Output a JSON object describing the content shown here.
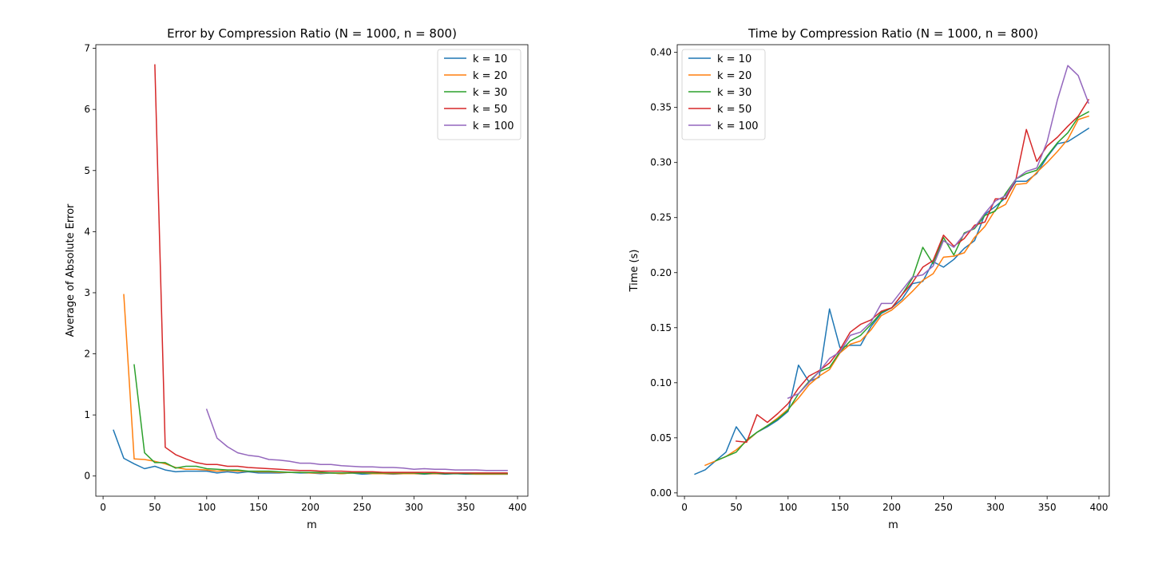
{
  "chart_data": [
    {
      "type": "line",
      "title": "Error by Compression Ratio (N = 1000, n = 800)",
      "xlabel": "m",
      "ylabel": "Average of Absolute Error",
      "xlim": [
        -7,
        410
      ],
      "ylim": [
        -0.33,
        7.06
      ],
      "xticks": [
        0,
        50,
        100,
        150,
        200,
        250,
        300,
        350,
        400
      ],
      "yticks": [
        0,
        1,
        2,
        3,
        4,
        5,
        6,
        7
      ],
      "legend_position": "upper right",
      "series": [
        {
          "name": "k = 10",
          "color": "#1f77b4",
          "x": [
            10,
            20,
            30,
            40,
            50,
            60,
            70,
            80,
            90,
            100,
            110,
            120,
            130,
            140,
            150,
            160,
            170,
            180,
            190,
            200,
            210,
            220,
            230,
            240,
            250,
            260,
            270,
            280,
            290,
            300,
            310,
            320,
            330,
            340,
            350,
            360,
            370,
            380,
            390
          ],
          "y": [
            0.75,
            0.29,
            0.2,
            0.12,
            0.16,
            0.1,
            0.07,
            0.08,
            0.08,
            0.08,
            0.05,
            0.07,
            0.05,
            0.07,
            0.05,
            0.05,
            0.05,
            0.06,
            0.05,
            0.05,
            0.04,
            0.05,
            0.04,
            0.05,
            0.03,
            0.04,
            0.04,
            0.03,
            0.04,
            0.04,
            0.03,
            0.04,
            0.03,
            0.04,
            0.03,
            0.03,
            0.03,
            0.03,
            0.03
          ]
        },
        {
          "name": "k = 20",
          "color": "#ff7f0e",
          "x": [
            20,
            30,
            40,
            50,
            60,
            70,
            80,
            90,
            100,
            110,
            120,
            130,
            140,
            150,
            160,
            170,
            180,
            190,
            200,
            210,
            220,
            230,
            240,
            250,
            260,
            270,
            280,
            290,
            300,
            310,
            320,
            330,
            340,
            350,
            360,
            370,
            380,
            390
          ],
          "y": [
            2.97,
            0.28,
            0.27,
            0.24,
            0.2,
            0.14,
            0.11,
            0.11,
            0.1,
            0.08,
            0.09,
            0.08,
            0.08,
            0.07,
            0.07,
            0.06,
            0.06,
            0.06,
            0.05,
            0.05,
            0.05,
            0.04,
            0.05,
            0.05,
            0.04,
            0.04,
            0.04,
            0.04,
            0.04,
            0.04,
            0.04,
            0.04,
            0.04,
            0.04,
            0.03,
            0.03,
            0.03,
            0.03
          ]
        },
        {
          "name": "k = 30",
          "color": "#2ca02c",
          "x": [
            30,
            40,
            50,
            60,
            70,
            80,
            90,
            100,
            110,
            120,
            130,
            140,
            150,
            160,
            170,
            180,
            190,
            200,
            210,
            220,
            230,
            240,
            250,
            260,
            270,
            280,
            290,
            300,
            310,
            320,
            330,
            340,
            350,
            360,
            370,
            380,
            390
          ],
          "y": [
            1.82,
            0.38,
            0.22,
            0.22,
            0.13,
            0.16,
            0.16,
            0.12,
            0.11,
            0.1,
            0.1,
            0.08,
            0.08,
            0.08,
            0.07,
            0.06,
            0.06,
            0.06,
            0.06,
            0.05,
            0.05,
            0.05,
            0.05,
            0.05,
            0.05,
            0.05,
            0.05,
            0.05,
            0.04,
            0.05,
            0.04,
            0.04,
            0.04,
            0.04,
            0.04,
            0.04,
            0.04
          ]
        },
        {
          "name": "k = 50",
          "color": "#d62728",
          "x": [
            50,
            60,
            70,
            80,
            90,
            100,
            110,
            120,
            130,
            140,
            150,
            160,
            170,
            180,
            190,
            200,
            210,
            220,
            230,
            240,
            250,
            260,
            270,
            280,
            290,
            300,
            310,
            320,
            330,
            340,
            350,
            360,
            370,
            380,
            390
          ],
          "y": [
            6.73,
            0.47,
            0.35,
            0.28,
            0.22,
            0.19,
            0.19,
            0.16,
            0.16,
            0.14,
            0.13,
            0.12,
            0.11,
            0.1,
            0.09,
            0.09,
            0.08,
            0.08,
            0.08,
            0.07,
            0.07,
            0.07,
            0.06,
            0.06,
            0.06,
            0.06,
            0.06,
            0.06,
            0.05,
            0.05,
            0.05,
            0.05,
            0.05,
            0.05,
            0.05
          ]
        },
        {
          "name": "k = 100",
          "color": "#9467bd",
          "x": [
            100,
            110,
            120,
            130,
            140,
            150,
            160,
            170,
            180,
            190,
            200,
            210,
            220,
            230,
            240,
            250,
            260,
            270,
            280,
            290,
            300,
            310,
            320,
            330,
            340,
            350,
            360,
            370,
            380,
            390
          ],
          "y": [
            1.09,
            0.62,
            0.48,
            0.38,
            0.34,
            0.32,
            0.27,
            0.26,
            0.24,
            0.21,
            0.21,
            0.19,
            0.19,
            0.17,
            0.16,
            0.15,
            0.15,
            0.14,
            0.14,
            0.13,
            0.11,
            0.12,
            0.11,
            0.11,
            0.1,
            0.1,
            0.1,
            0.09,
            0.09,
            0.09
          ]
        }
      ]
    },
    {
      "type": "line",
      "title": "Time by Compression Ratio (N = 1000, n = 800)",
      "xlabel": "m",
      "ylabel": "Time (s)",
      "xlim": [
        -7,
        410
      ],
      "ylim": [
        -0.003,
        0.407
      ],
      "xticks": [
        0,
        50,
        100,
        150,
        200,
        250,
        300,
        350,
        400
      ],
      "yticks": [
        0.0,
        0.05,
        0.1,
        0.15,
        0.2,
        0.25,
        0.3,
        0.35,
        0.4
      ],
      "ytick_labels": [
        "0.00",
        "0.05",
        "0.10",
        "0.15",
        "0.20",
        "0.25",
        "0.30",
        "0.35",
        "0.40"
      ],
      "legend_position": "upper left",
      "series": [
        {
          "name": "k = 10",
          "color": "#1f77b4",
          "x": [
            10,
            20,
            30,
            40,
            50,
            60,
            70,
            80,
            90,
            100,
            110,
            120,
            130,
            140,
            150,
            160,
            170,
            180,
            190,
            200,
            210,
            220,
            230,
            240,
            250,
            260,
            270,
            280,
            290,
            300,
            310,
            320,
            330,
            340,
            350,
            360,
            370,
            380,
            390
          ],
          "y": [
            0.017,
            0.021,
            0.029,
            0.037,
            0.06,
            0.047,
            0.055,
            0.06,
            0.066,
            0.074,
            0.116,
            0.101,
            0.105,
            0.167,
            0.132,
            0.134,
            0.134,
            0.151,
            0.163,
            0.168,
            0.176,
            0.19,
            0.192,
            0.21,
            0.205,
            0.212,
            0.222,
            0.229,
            0.253,
            0.26,
            0.268,
            0.283,
            0.283,
            0.29,
            0.305,
            0.317,
            0.319,
            0.325,
            0.331
          ]
        },
        {
          "name": "k = 20",
          "color": "#ff7f0e",
          "x": [
            20,
            30,
            40,
            50,
            60,
            70,
            80,
            90,
            100,
            110,
            120,
            130,
            140,
            150,
            160,
            170,
            180,
            190,
            200,
            210,
            220,
            230,
            240,
            250,
            260,
            270,
            280,
            290,
            300,
            310,
            320,
            330,
            340,
            350,
            360,
            370,
            380,
            390
          ],
          "y": [
            0.025,
            0.029,
            0.033,
            0.039,
            0.047,
            0.055,
            0.061,
            0.068,
            0.076,
            0.086,
            0.098,
            0.106,
            0.112,
            0.127,
            0.135,
            0.138,
            0.148,
            0.161,
            0.166,
            0.174,
            0.183,
            0.193,
            0.199,
            0.214,
            0.215,
            0.218,
            0.232,
            0.242,
            0.257,
            0.262,
            0.28,
            0.281,
            0.291,
            0.3,
            0.31,
            0.321,
            0.339,
            0.342
          ]
        },
        {
          "name": "k = 30",
          "color": "#2ca02c",
          "x": [
            30,
            40,
            50,
            60,
            70,
            80,
            90,
            100,
            110,
            120,
            130,
            140,
            150,
            160,
            170,
            180,
            190,
            200,
            210,
            220,
            230,
            240,
            250,
            260,
            270,
            280,
            290,
            300,
            310,
            320,
            330,
            340,
            350,
            360,
            370,
            380,
            390
          ],
          "y": [
            0.029,
            0.033,
            0.037,
            0.048,
            0.055,
            0.061,
            0.067,
            0.075,
            0.09,
            0.101,
            0.11,
            0.114,
            0.128,
            0.138,
            0.143,
            0.153,
            0.164,
            0.168,
            0.18,
            0.195,
            0.223,
            0.208,
            0.232,
            0.216,
            0.236,
            0.24,
            0.252,
            0.256,
            0.272,
            0.285,
            0.29,
            0.293,
            0.306,
            0.318,
            0.327,
            0.341,
            0.346
          ]
        },
        {
          "name": "k = 50",
          "color": "#d62728",
          "x": [
            50,
            60,
            70,
            80,
            90,
            100,
            110,
            120,
            130,
            140,
            150,
            160,
            170,
            180,
            190,
            200,
            210,
            220,
            230,
            240,
            250,
            260,
            270,
            280,
            290,
            300,
            310,
            320,
            330,
            340,
            350,
            360,
            370,
            380,
            390
          ],
          "y": [
            0.047,
            0.046,
            0.071,
            0.064,
            0.072,
            0.081,
            0.095,
            0.106,
            0.111,
            0.118,
            0.13,
            0.146,
            0.153,
            0.157,
            0.165,
            0.168,
            0.18,
            0.191,
            0.205,
            0.211,
            0.234,
            0.224,
            0.231,
            0.243,
            0.246,
            0.267,
            0.267,
            0.285,
            0.33,
            0.301,
            0.315,
            0.323,
            0.333,
            0.342,
            0.357
          ]
        },
        {
          "name": "k = 100",
          "color": "#9467bd",
          "x": [
            100,
            110,
            120,
            130,
            140,
            150,
            160,
            170,
            180,
            190,
            200,
            210,
            220,
            230,
            240,
            250,
            260,
            270,
            280,
            290,
            300,
            310,
            320,
            330,
            340,
            350,
            360,
            370,
            380,
            390
          ],
          "y": [
            0.086,
            0.09,
            0.1,
            0.11,
            0.122,
            0.128,
            0.143,
            0.146,
            0.155,
            0.172,
            0.172,
            0.184,
            0.196,
            0.198,
            0.206,
            0.229,
            0.223,
            0.235,
            0.241,
            0.254,
            0.265,
            0.27,
            0.285,
            0.292,
            0.295,
            0.319,
            0.357,
            0.388,
            0.379,
            0.354
          ]
        }
      ]
    }
  ]
}
